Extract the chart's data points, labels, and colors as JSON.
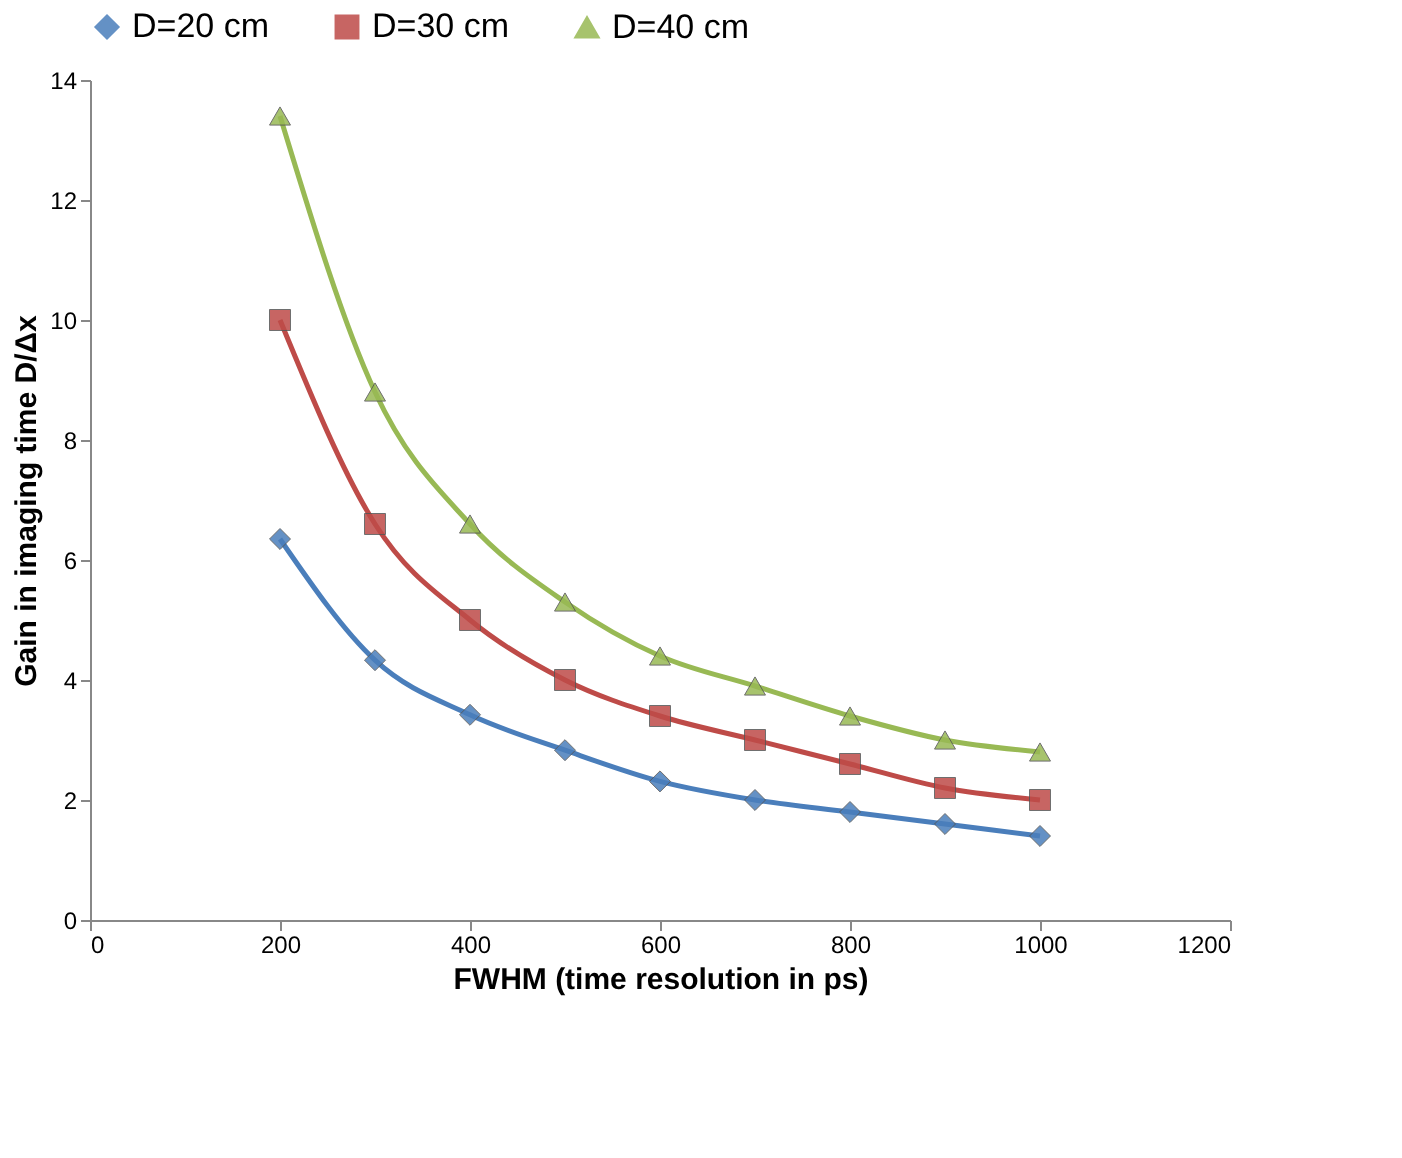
{
  "chart_data": {
    "type": "line",
    "xlabel": "FWHM (time resolution in ps)",
    "ylabel": "Gain in imaging time D/Δx",
    "x": [
      200,
      300,
      400,
      500,
      600,
      700,
      800,
      900,
      1000
    ],
    "series": [
      {
        "name": "D=20 cm",
        "color": "#4a7ebb",
        "marker": "diamond",
        "values": [
          6.35,
          4.33,
          3.42,
          2.83,
          2.31,
          2.0,
          1.8,
          1.6,
          1.4
        ]
      },
      {
        "name": "D=30 cm",
        "color": "#be4b48",
        "marker": "square",
        "values": [
          10.0,
          6.6,
          5.0,
          4.0,
          3.4,
          3.0,
          2.6,
          2.2,
          2.0
        ]
      },
      {
        "name": "D=40 cm",
        "color": "#98b954",
        "marker": "triangle",
        "values": [
          13.4,
          8.8,
          6.6,
          5.3,
          4.4,
          3.9,
          3.4,
          3.0,
          2.8
        ]
      }
    ],
    "xlim": [
      0,
      1200
    ],
    "xticks": [
      0,
      200,
      400,
      600,
      800,
      1000,
      1200
    ],
    "ylim": [
      0,
      14
    ],
    "yticks": [
      0,
      2,
      4,
      6,
      8,
      10,
      12,
      14
    ],
    "grid": false,
    "legend": "top",
    "line_style": "solid"
  }
}
